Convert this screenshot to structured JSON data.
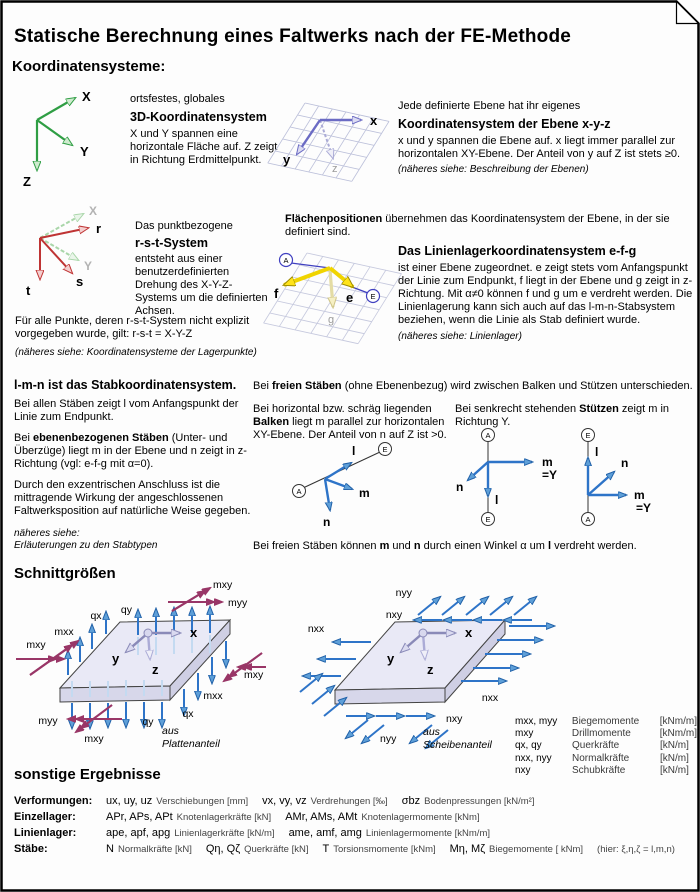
{
  "page": {
    "title": "Statische Berechnung eines Faltwerks nach der FE-Methode",
    "heading_koordinatensysteme": "Koordinatensysteme:",
    "heading_schnittgroessen": "Schnittgrößen",
    "heading_sonstige": "sonstige Ergebnisse"
  },
  "global_xyz": {
    "labels": {
      "X": "X",
      "Y": "Y",
      "Z": "Z"
    },
    "line1": "ortsfestes, globales",
    "heading": "3D-Koordinatensystem",
    "body": "X und Y spannen eine horizontale Fläche auf. Z zeigt in Richtung Erdmittelpunkt."
  },
  "plane_xyz": {
    "labels": {
      "x": "x",
      "y": "y",
      "z": "z"
    },
    "line1": "Jede definierte Ebene hat ihr eigenes",
    "heading": "Koordinatensystem der Ebene  x-y-z",
    "body": "x und y spannen die Ebene auf. x liegt immer parallel zur horizontalen XY-Ebene. Der Anteil von y auf Z ist stets ≥0.",
    "note": "(näheres siehe: Beschreibung der Ebenen)"
  },
  "rst": {
    "labels": {
      "r": "r",
      "s": "s",
      "t": "t",
      "X": "X",
      "Y": "Y"
    },
    "line1": "Das punktbezogene",
    "heading": "r-s-t-System",
    "body": "entsteht aus einer benutzerdefinierten Drehung des X-Y-Z-Systems um die definierten Achsen.",
    "rule": "Für alle Punkte, deren r-s-t-System nicht explizit vorgegeben wurde, gilt: r-s-t = X-Y-Z",
    "note": "(näheres siehe: Koordinatensysteme der Lagerpunkte)"
  },
  "flaechen": {
    "segments": [
      {
        "t": "Flächenpositionen",
        "b": true
      },
      {
        "t": " übernehmen das Koordinatensystem der Ebene, in der sie definiert sind."
      }
    ]
  },
  "efg": {
    "labels": {
      "A": "A",
      "E": "E",
      "e": "e",
      "f": "f",
      "g": "g"
    },
    "heading": "Das Linienlagerkoordinatensystem  e-f-g",
    "body": "ist einer Ebene zugeordnet. e zeigt stets vom Anfangspunkt der Linie zum Endpunkt, f liegt in der Ebene und g zeigt in z-Richtung. Mit α≠0 können f und g um e verdreht werden. Die Linienlagerung kann sich auch auf das l-m-n-Stabsystem beziehen, wenn die Linie als Stab definiert wurde.",
    "note": "(näheres siehe: Linienlager)"
  },
  "lmn": {
    "heading": "l-m-n ist das Stabkoordinatensystem.",
    "p1": "Bei allen Stäben zeigt l vom Anfangspunkt der Linie zum Endpunkt.",
    "p2_segments": [
      {
        "t": "Bei "
      },
      {
        "t": "ebenenbezogenen Stäben",
        "b": true
      },
      {
        "t": " (Unter- und Überzüge) liegt m in der Ebene und n zeigt in z-Richtung (vgl: e-f-g mit α=0)."
      }
    ],
    "p3": "Durch den exzentrischen Anschluss ist die mittragende Wirkung der angeschlossenen Faltwerksposition auf natürliche Weise gegeben.",
    "note1": "näheres siehe:",
    "note2": "Erläuterungen zu den Stabtypen",
    "frei_segments": [
      {
        "t": "Bei "
      },
      {
        "t": "freien Stäben",
        "b": true
      },
      {
        "t": " (ohne Ebenenbezug) wird zwischen Balken und Stützen unterschieden."
      }
    ],
    "balken_segments": [
      {
        "t": "Bei horizontal bzw. schräg liegenden "
      },
      {
        "t": "Balken",
        "b": true
      },
      {
        "t": " liegt m parallel zur horizontalen XY-Ebene. Der Anteil von n auf Z ist >0."
      }
    ],
    "stuetzen_segments": [
      {
        "t": "Bei senkrecht stehenden "
      },
      {
        "t": "Stützen",
        "b": true
      },
      {
        "t": " zeigt m in Richtung Y."
      }
    ],
    "outro_segments": [
      {
        "t": "Bei freien Stäben können "
      },
      {
        "t": "m",
        "b": true
      },
      {
        "t": " und "
      },
      {
        "t": "n",
        "b": true
      },
      {
        "t": " durch einen Winkel α um "
      },
      {
        "t": "l",
        "b": true
      },
      {
        "t": " verdreht werden."
      }
    ],
    "d": {
      "A": "A",
      "E": "E",
      "l": "l",
      "m": "m",
      "n": "n",
      "eqY": "=Y"
    }
  },
  "plates": {
    "sym": {
      "mxx": "mxx",
      "myy": "myy",
      "mxy": "mxy",
      "qx": "qx",
      "qy": "qy",
      "nxx": "nxx",
      "nyy": "nyy",
      "nxy": "nxy",
      "x": "x",
      "y": "y",
      "z": "z"
    },
    "left_caption1": "aus",
    "left_caption2": "Plattenanteil",
    "right_caption1": "aus",
    "right_caption2": "Scheibenanteil"
  },
  "legend": {
    "rows": [
      {
        "sym": "mxx, myy",
        "name": "Biegemomente",
        "unit": "[kNm/m]"
      },
      {
        "sym": "mxy",
        "name": "Drillmomente",
        "unit": "[kNm/m]"
      },
      {
        "sym": "qx, qy",
        "name": "Querkräfte",
        "unit": "[kN/m]"
      },
      {
        "sym": "nxx, nyy",
        "name": "Normalkräfte",
        "unit": "[kN/m]"
      },
      {
        "sym": "nxy",
        "name": "Schubkräfte",
        "unit": "[kN/m]"
      }
    ]
  },
  "results": {
    "rows": [
      {
        "label": "Verformungen:",
        "pairs": [
          {
            "sym": "ux, uy, uz",
            "desc": "Verschiebungen [mm]"
          },
          {
            "sym": "vx, vy, vz",
            "desc": "Verdrehungen [‰]"
          },
          {
            "sym": "σbz",
            "desc": "Bodenpressungen [kN/m²]"
          }
        ]
      },
      {
        "label": "Einzellager:",
        "pairs": [
          {
            "sym": "APr, APs, APt",
            "desc": "Knotenlagerkräfte [kN]"
          },
          {
            "sym": "AMr, AMs, AMt",
            "desc": "Knotenlagermomente [kNm]"
          }
        ]
      },
      {
        "label": "Linienlager:",
        "pairs": [
          {
            "sym": "ape, apf, apg",
            "desc": "Linienlagerkräfte [kN/m]"
          },
          {
            "sym": "ame, amf, amg",
            "desc": "Linienlagermomente [kNm/m]"
          }
        ]
      },
      {
        "label": "Stäbe:",
        "pairs": [
          {
            "sym": "N",
            "desc": "Normalkräfte [kN]"
          },
          {
            "sym": "Qη, Qζ",
            "desc": "Querkräfte [kN]"
          },
          {
            "sym": "T",
            "desc": "Torsionsmomente [kNm]"
          },
          {
            "sym": "Mη, Mζ",
            "desc": "Biegemomente [ kNm]"
          }
        ],
        "note": "(hier: ξ,η,ζ = l,m,n)"
      }
    ]
  }
}
